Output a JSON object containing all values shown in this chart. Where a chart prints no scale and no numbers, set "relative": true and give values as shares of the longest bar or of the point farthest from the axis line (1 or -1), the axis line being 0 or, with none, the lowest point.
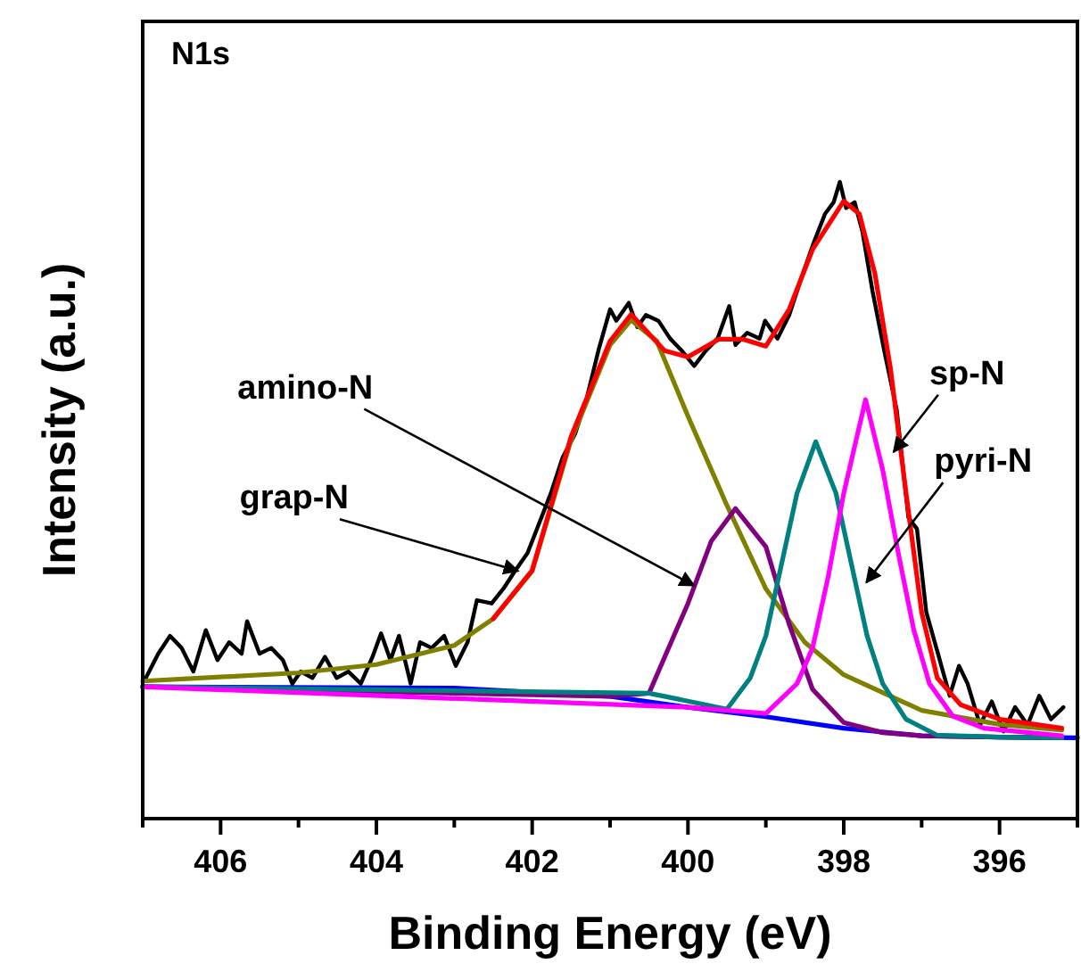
{
  "chart_data": {
    "type": "line",
    "relative": true,
    "xlabel": "Binding Energy (eV)",
    "ylabel": "Intensity (a.u.)",
    "xlim": [
      407,
      395
    ],
    "xticks": [
      {
        "value": 407,
        "label": null
      },
      406,
      {
        "value": 405,
        "label": null
      },
      404,
      {
        "value": 403,
        "label": null
      },
      402,
      {
        "value": 401,
        "label": null
      },
      400,
      {
        "value": 399,
        "label": null
      },
      398,
      {
        "value": 397,
        "label": null
      },
      396,
      {
        "value": 395,
        "label": null
      }
    ],
    "grid": false,
    "marker": "none",
    "line_style": "solid",
    "tick_labels": "x",
    "annotations": [
      "N1s",
      {
        "text": "grap-N",
        "x": 402.18,
        "y": 0.389
      },
      {
        "text": "amino-N",
        "x": 399.92,
        "y": 0.366
      },
      {
        "text": "sp-N",
        "x": 397.36,
        "y": 0.576
      },
      {
        "text": "pyri-N",
        "x": 397.71,
        "y": 0.371
      }
    ],
    "series": [
      {
        "color": "#0000ff",
        "x": [
          407,
          403,
          401,
          400,
          399,
          398,
          397,
          396,
          395
        ],
        "values": [
          0.207,
          0.205,
          0.192,
          0.175,
          0.16,
          0.142,
          0.13,
          0.128,
          0.127
        ]
      },
      {
        "color": "#000000",
        "x": [
          406.96,
          406.8,
          406.65,
          406.5,
          406.35,
          406.19,
          406.04,
          405.89,
          405.73,
          405.66,
          405.5,
          405.35,
          405.2,
          405.08,
          404.97,
          404.82,
          404.66,
          404.51,
          404.36,
          404.2,
          404.05,
          403.94,
          403.82,
          403.71,
          403.56,
          403.44,
          403.29,
          403.13,
          402.98,
          402.83,
          402.71,
          402.52,
          402.37,
          402.22,
          402.06,
          401.91,
          401.76,
          401.61,
          401.45,
          401.3,
          401.15,
          401,
          400.92,
          400.76,
          400.65,
          400.54,
          400.38,
          400.23,
          400.08,
          399.92,
          399.77,
          399.62,
          399.47,
          399.39,
          399.24,
          399.08,
          399.01,
          398.85,
          398.7,
          398.55,
          398.39,
          398.24,
          398.13,
          398.05,
          397.97,
          397.86,
          397.76,
          397.63,
          397.48,
          397.32,
          397.17,
          397.06,
          396.94,
          396.79,
          396.64,
          396.52,
          396.41,
          396.25,
          396.1,
          395.95,
          395.8,
          395.64,
          395.49,
          395.34,
          395.18
        ],
        "values": [
          0.221,
          0.259,
          0.287,
          0.268,
          0.231,
          0.296,
          0.249,
          0.277,
          0.259,
          0.31,
          0.259,
          0.268,
          0.249,
          0.212,
          0.231,
          0.221,
          0.254,
          0.221,
          0.231,
          0.212,
          0.254,
          0.291,
          0.249,
          0.287,
          0.212,
          0.277,
          0.268,
          0.287,
          0.24,
          0.277,
          0.343,
          0.338,
          0.361,
          0.389,
          0.417,
          0.464,
          0.511,
          0.567,
          0.604,
          0.66,
          0.735,
          0.8,
          0.782,
          0.81,
          0.772,
          0.791,
          0.782,
          0.754,
          0.735,
          0.711,
          0.735,
          0.754,
          0.805,
          0.744,
          0.763,
          0.754,
          0.782,
          0.754,
          0.791,
          0.847,
          0.903,
          0.95,
          0.968,
          1,
          0.959,
          0.968,
          0.922,
          0.828,
          0.735,
          0.642,
          0.473,
          0.455,
          0.324,
          0.259,
          0.193,
          0.24,
          0.212,
          0.147,
          0.184,
          0.137,
          0.175,
          0.147,
          0.193,
          0.156,
          0.175
        ]
      },
      {
        "color": "#808000",
        "x": [
          407,
          405,
          404,
          403,
          402.5,
          402,
          401.5,
          401,
          400.73,
          400.4,
          400,
          399.5,
          399,
          398.5,
          398,
          397,
          396,
          395.2
        ],
        "values": [
          0.216,
          0.229,
          0.242,
          0.272,
          0.314,
          0.389,
          0.595,
          0.744,
          0.783,
          0.75,
          0.632,
          0.492,
          0.361,
          0.277,
          0.226,
          0.17,
          0.148,
          0.139
        ]
      },
      {
        "color": "#800080",
        "x": [
          407,
          401,
          400.5,
          400,
          399.7,
          399.39,
          399,
          398.7,
          398.4,
          398,
          397.5,
          397,
          396,
          395.2
        ],
        "values": [
          0.207,
          0.192,
          0.197,
          0.338,
          0.436,
          0.487,
          0.427,
          0.305,
          0.203,
          0.151,
          0.135,
          0.13,
          0.128,
          0.127
        ]
      },
      {
        "color": "#008080",
        "x": [
          407,
          400.5,
          399.5,
          399.2,
          399,
          398.8,
          398.6,
          398.36,
          398.1,
          397.9,
          397.7,
          397.5,
          397.2,
          396.8,
          396,
          395.2
        ],
        "values": [
          0.207,
          0.197,
          0.172,
          0.221,
          0.287,
          0.399,
          0.511,
          0.592,
          0.511,
          0.399,
          0.287,
          0.212,
          0.156,
          0.131,
          0.128,
          0.127
        ]
      },
      {
        "color": "#ff00ff",
        "x": [
          407,
          400,
          399,
          398.6,
          398.4,
          398.2,
          398,
          397.72,
          397.5,
          397.3,
          397.1,
          396.9,
          396.6,
          396.2,
          395.2
        ],
        "values": [
          0.207,
          0.175,
          0.165,
          0.212,
          0.268,
          0.38,
          0.511,
          0.658,
          0.548,
          0.417,
          0.296,
          0.212,
          0.161,
          0.142,
          0.13
        ]
      },
      {
        "color": "#ff0000",
        "x": [
          402.5,
          402,
          401.5,
          401,
          400.73,
          400.3,
          400,
          399.6,
          399.3,
          399,
          398.7,
          398.4,
          398,
          397.8,
          397.6,
          397.4,
          397.2,
          397,
          396.8,
          396.5,
          396,
          395.2
        ],
        "values": [
          0.314,
          0.39,
          0.6,
          0.75,
          0.792,
          0.735,
          0.725,
          0.753,
          0.753,
          0.742,
          0.8,
          0.894,
          0.97,
          0.95,
          0.856,
          0.707,
          0.511,
          0.324,
          0.221,
          0.179,
          0.156,
          0.142
        ]
      }
    ]
  }
}
